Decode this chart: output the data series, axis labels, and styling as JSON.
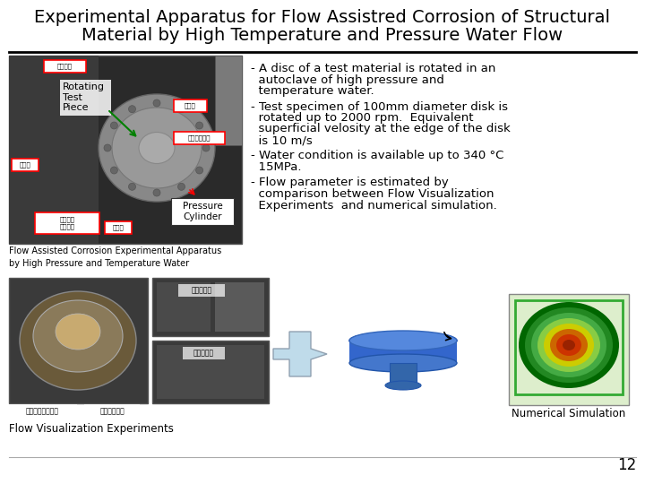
{
  "title_line1": "Experimental Apparatus for Flow Assistred Corrosion of Structural",
  "title_line2": "Material by High Temperature and Pressure Water Flow",
  "title_fontsize": 14,
  "title_color": "#000000",
  "background_color": "#ffffff",
  "separator_color": "#000000",
  "bullet_points": [
    [
      "- A disc of a test material is rotated in an",
      "  autoclave of high pressure and",
      "  temperature water."
    ],
    [
      "- Test specimen of 100mm diameter disk is",
      "  rotated up to 2000 rpm.  Equivalent",
      "  superficial velosity at the edge of the disk",
      "  is 10 m/s"
    ],
    [
      "- Water condition is available up to 340 °C",
      "  15MPa."
    ],
    [
      "- Flow parameter is estimated by",
      "  comparison between Flow Visualization",
      "  Experiments  and numerical simulation."
    ]
  ],
  "bullet_fontsize": 9.5,
  "label_rotating": "Rotating\nTest\nPiece",
  "label_pressure": "Pressure\nCylinder",
  "label_apparatus": "Flow Assisted Corrosion Experimental Apparatus\nby High Pressure and Temperature Water",
  "label_numerical": "Numerical Simulation",
  "label_flow_viz": "Flow Visualization Experiments",
  "slide_number": "12",
  "arrow_color": "#B8D8E8"
}
